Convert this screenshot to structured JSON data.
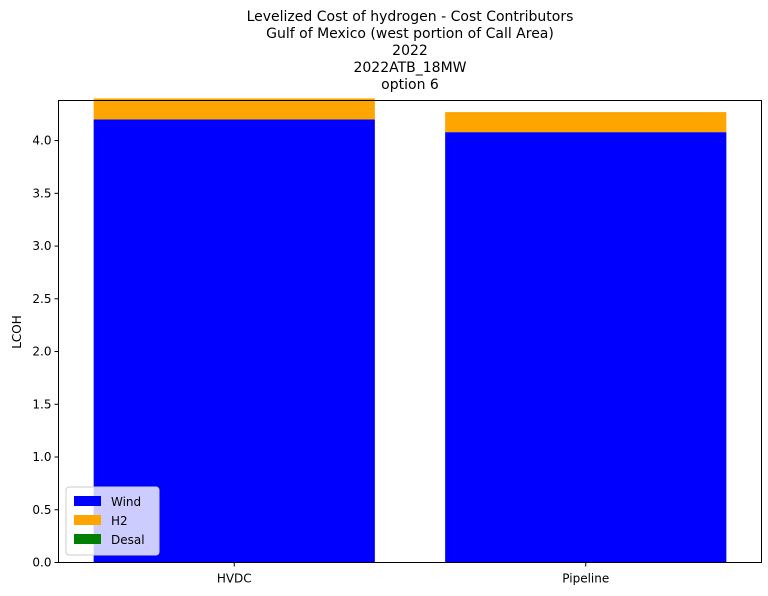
{
  "chart_data": {
    "type": "bar",
    "stacked": true,
    "title_lines": [
      "Levelized Cost of hydrogen - Cost Contributors",
      "Gulf of Mexico (west portion of Call Area)",
      "2022",
      "2022ATB_18MW",
      "option 6"
    ],
    "xlabel": "",
    "ylabel": "LCOH",
    "categories": [
      "HVDC",
      "Pipeline"
    ],
    "series": [
      {
        "name": "Wind",
        "color": "#0000ff",
        "values": [
          4.2,
          4.08
        ]
      },
      {
        "name": "H2",
        "color": "#ffa500",
        "values": [
          0.2,
          0.19
        ]
      },
      {
        "name": "Desal",
        "color": "#008000",
        "values": [
          0.0,
          0.0
        ]
      }
    ],
    "ylim": [
      0,
      4.38
    ],
    "yticks": [
      "0.0",
      "0.5",
      "1.0",
      "1.5",
      "2.0",
      "2.5",
      "3.0",
      "3.5",
      "4.0"
    ],
    "legend_position": "lower-left",
    "grid": false
  }
}
